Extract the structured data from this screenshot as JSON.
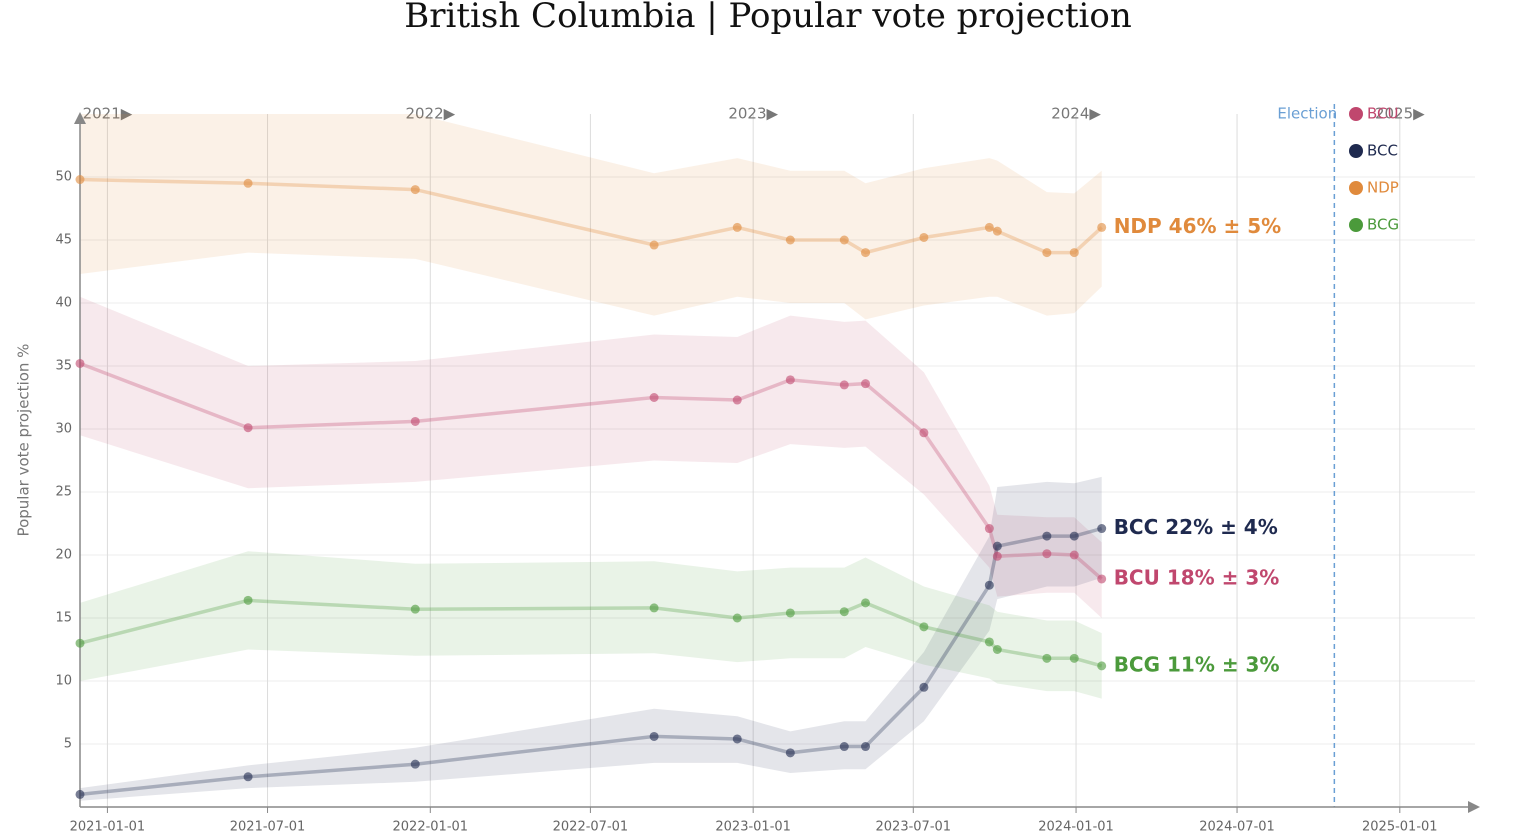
{
  "chart_data": {
    "type": "line",
    "title": "British Columbia | Popular vote projection",
    "y_label": "Popular vote projection %",
    "x": [
      "2020-12-01",
      "2021-06-09",
      "2021-12-15",
      "2022-09-11",
      "2022-12-14",
      "2023-02-12",
      "2023-04-14",
      "2023-05-08",
      "2023-07-13",
      "2023-09-25",
      "2023-10-04",
      "2023-11-29",
      "2023-12-30",
      "2024-01-30"
    ],
    "xlim": [
      "2020-12-01",
      "2025-03-27"
    ],
    "xticks": [
      "2021-01-01",
      "2021-07-01",
      "2022-01-01",
      "2022-07-01",
      "2023-01-01",
      "2023-07-01",
      "2024-01-01",
      "2024-07-01",
      "2025-01-01"
    ],
    "ylim": [
      0,
      55
    ],
    "yticks": [
      5,
      10,
      15,
      20,
      25,
      30,
      35,
      40,
      45,
      50
    ],
    "grid": true,
    "year_markers": [
      {
        "value": "2021-01-01",
        "label": "2021▶"
      },
      {
        "value": "2022-01-01",
        "label": "2022▶"
      },
      {
        "value": "2023-01-01",
        "label": "2023▶"
      },
      {
        "value": "2024-01-01",
        "label": "2024▶"
      },
      {
        "value": "2025-01-01",
        "label": "2025▶"
      }
    ],
    "election": {
      "x": "2024-10-19",
      "label": "Election"
    },
    "series": [
      {
        "name": "BCU",
        "color": "#c0476e",
        "end_label": "BCU 18% ± 3%",
        "values": [
          35.2,
          30.1,
          30.6,
          32.5,
          32.3,
          33.9,
          33.5,
          33.6,
          29.7,
          22.1,
          19.9,
          20.1,
          20.0,
          18.1
        ],
        "upper": [
          40.5,
          35.0,
          35.4,
          37.5,
          37.3,
          39.0,
          38.5,
          38.6,
          34.5,
          25.5,
          23.2,
          23.0,
          23.0,
          21.0
        ],
        "lower": [
          29.5,
          25.3,
          25.8,
          27.5,
          27.3,
          28.8,
          28.5,
          28.6,
          24.8,
          19.0,
          16.7,
          17.0,
          17.0,
          15.0
        ]
      },
      {
        "name": "BCC",
        "color": "#1f2a4f",
        "end_label": "BCC 22% ± 4%",
        "values": [
          1.0,
          2.4,
          3.4,
          5.6,
          5.4,
          4.3,
          4.8,
          4.8,
          9.5,
          17.6,
          20.7,
          21.5,
          21.5,
          22.1
        ],
        "upper": [
          1.5,
          3.3,
          4.7,
          7.8,
          7.2,
          6.0,
          6.8,
          6.8,
          12.3,
          21.5,
          25.4,
          25.8,
          25.7,
          26.2
        ],
        "lower": [
          0.5,
          1.5,
          2.0,
          3.5,
          3.5,
          2.7,
          3.0,
          3.0,
          6.8,
          14.0,
          16.5,
          17.5,
          17.5,
          18.2
        ]
      },
      {
        "name": "NDP",
        "color": "#e08a3c",
        "end_label": "NDP 46% ± 5%",
        "values": [
          49.8,
          49.5,
          49.0,
          44.6,
          46.0,
          45.0,
          45.0,
          44.0,
          45.2,
          46.0,
          45.7,
          44.0,
          44.0,
          46.0
        ],
        "upper": [
          55.0,
          55.0,
          55.0,
          50.3,
          51.5,
          50.5,
          50.5,
          49.5,
          50.7,
          51.5,
          51.3,
          48.8,
          48.7,
          50.5
        ],
        "lower": [
          42.3,
          44.0,
          43.5,
          39.0,
          40.5,
          40.0,
          40.0,
          38.7,
          39.8,
          40.5,
          40.5,
          39.0,
          39.2,
          41.3
        ]
      },
      {
        "name": "BCG",
        "color": "#4b9a3b",
        "end_label": "BCG 11% ± 3%",
        "values": [
          13.0,
          16.4,
          15.7,
          15.8,
          15.0,
          15.4,
          15.5,
          16.2,
          14.3,
          13.1,
          12.5,
          11.8,
          11.8,
          11.2
        ],
        "upper": [
          16.2,
          20.3,
          19.3,
          19.5,
          18.7,
          19.0,
          19.0,
          19.8,
          17.5,
          16.0,
          15.5,
          14.8,
          14.8,
          13.8
        ],
        "lower": [
          10.0,
          12.5,
          12.0,
          12.2,
          11.5,
          11.8,
          11.8,
          12.7,
          11.3,
          10.2,
          9.8,
          9.2,
          9.2,
          8.6
        ]
      }
    ]
  }
}
